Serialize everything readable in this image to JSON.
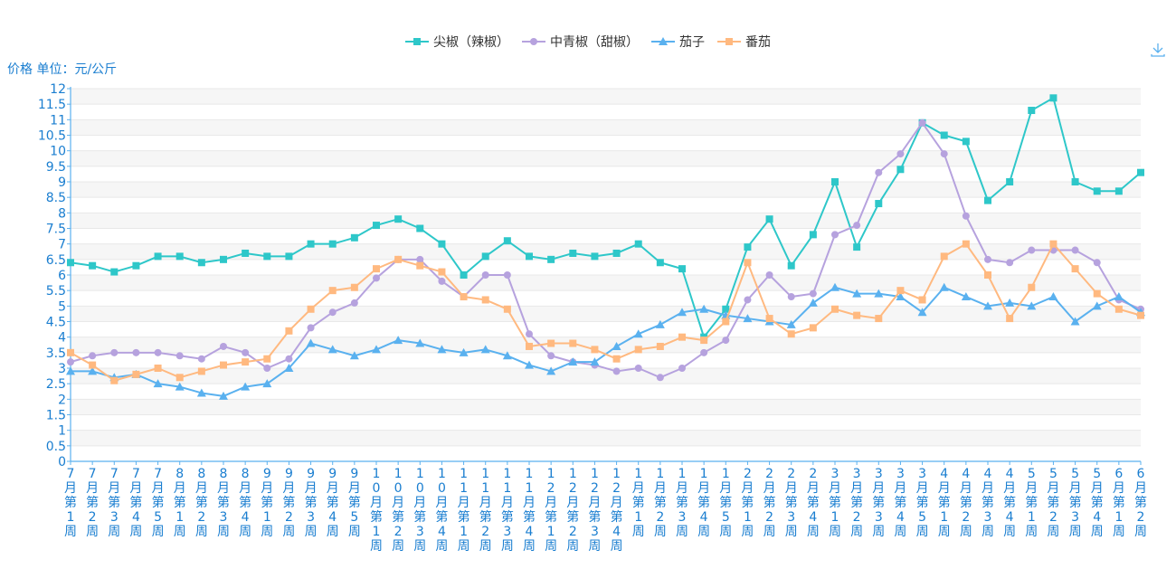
{
  "chart_data": {
    "type": "line",
    "ylabel": "价格 单位：元/公斤",
    "ylim": [
      0,
      12
    ],
    "ytick_step": 0.5,
    "grid": true,
    "legend_position": "top-center",
    "categories": [
      "7月第1周",
      "7月第2周",
      "7月第3周",
      "7月第4周",
      "7月第5周",
      "8月第1周",
      "8月第2周",
      "8月第3周",
      "8月第4周",
      "9月第1周",
      "9月第2周",
      "9月第3周",
      "9月第4周",
      "9月第5周",
      "10月第1周",
      "10月第2周",
      "10月第3周",
      "10月第4周",
      "11月第1周",
      "11月第2周",
      "11月第3周",
      "11月第4周",
      "12月第1周",
      "12月第2周",
      "12月第3周",
      "12月第4周",
      "1月第1周",
      "1月第2周",
      "1月第3周",
      "1月第4周",
      "1月第5周",
      "2月第1周",
      "2月第2周",
      "2月第3周",
      "2月第4周",
      "3月第1周",
      "3月第2周",
      "3月第3周",
      "3月第4周",
      "3月第5周",
      "4月第1周",
      "4月第2周",
      "4月第3周",
      "4月第4周",
      "5月第1周",
      "5月第2周",
      "5月第3周",
      "5月第4周",
      "6月第1周",
      "6月第2周"
    ],
    "series": [
      {
        "name": "尖椒（辣椒）",
        "color": "#2ec7c9",
        "marker": "square",
        "values": [
          6.4,
          6.3,
          6.1,
          6.3,
          6.6,
          6.6,
          6.4,
          6.5,
          6.7,
          6.6,
          6.6,
          7.0,
          7.0,
          7.2,
          7.6,
          7.8,
          7.5,
          7.0,
          6.0,
          6.6,
          7.1,
          6.6,
          6.5,
          6.7,
          6.6,
          6.7,
          7.0,
          6.4,
          6.2,
          4.0,
          4.9,
          6.9,
          7.8,
          6.3,
          7.3,
          9.0,
          6.9,
          8.3,
          9.4,
          10.9,
          10.5,
          10.3,
          8.4,
          9.0,
          11.3,
          11.7,
          9.0,
          8.7,
          8.7,
          9.3
        ]
      },
      {
        "name": "中青椒（甜椒）",
        "color": "#b6a2de",
        "marker": "circle",
        "values": [
          3.2,
          3.4,
          3.5,
          3.5,
          3.5,
          3.4,
          3.3,
          3.7,
          3.5,
          3.0,
          3.3,
          4.3,
          4.8,
          5.1,
          5.9,
          6.5,
          6.5,
          5.8,
          5.3,
          6.0,
          6.0,
          4.1,
          3.4,
          3.2,
          3.1,
          2.9,
          3.0,
          2.7,
          3.0,
          3.5,
          3.9,
          5.2,
          6.0,
          5.3,
          5.4,
          7.3,
          7.6,
          9.3,
          9.9,
          10.9,
          9.9,
          7.9,
          6.5,
          6.4,
          6.8,
          6.8,
          6.8,
          6.4,
          5.2,
          4.9
        ]
      },
      {
        "name": "茄子",
        "color": "#5ab1ef",
        "marker": "triangle",
        "values": [
          2.9,
          2.9,
          2.7,
          2.8,
          2.5,
          2.4,
          2.2,
          2.1,
          2.4,
          2.5,
          3.0,
          3.8,
          3.6,
          3.4,
          3.6,
          3.9,
          3.8,
          3.6,
          3.5,
          3.6,
          3.4,
          3.1,
          2.9,
          3.2,
          3.2,
          3.7,
          4.1,
          4.4,
          4.8,
          4.9,
          4.7,
          4.6,
          4.5,
          4.4,
          5.1,
          5.6,
          5.4,
          5.4,
          5.3,
          4.8,
          5.6,
          5.3,
          5.0,
          5.1,
          5.0,
          5.3,
          4.5,
          5.0,
          5.3,
          4.8
        ]
      },
      {
        "name": "番茄",
        "color": "#ffb980",
        "marker": "square",
        "values": [
          3.5,
          3.1,
          2.6,
          2.8,
          3.0,
          2.7,
          2.9,
          3.1,
          3.2,
          3.3,
          4.2,
          4.9,
          5.5,
          5.6,
          6.2,
          6.5,
          6.3,
          6.1,
          5.3,
          5.2,
          4.9,
          3.7,
          3.8,
          3.8,
          3.6,
          3.3,
          3.6,
          3.7,
          4.0,
          3.9,
          4.5,
          6.4,
          4.6,
          4.1,
          4.3,
          4.9,
          4.7,
          4.6,
          5.5,
          5.2,
          6.6,
          7.0,
          6.0,
          4.6,
          5.6,
          7.0,
          6.2,
          5.4,
          4.9,
          4.7
        ]
      }
    ]
  },
  "toolbox": {
    "download_icon": "download-icon",
    "color": "#5ab1ef"
  }
}
